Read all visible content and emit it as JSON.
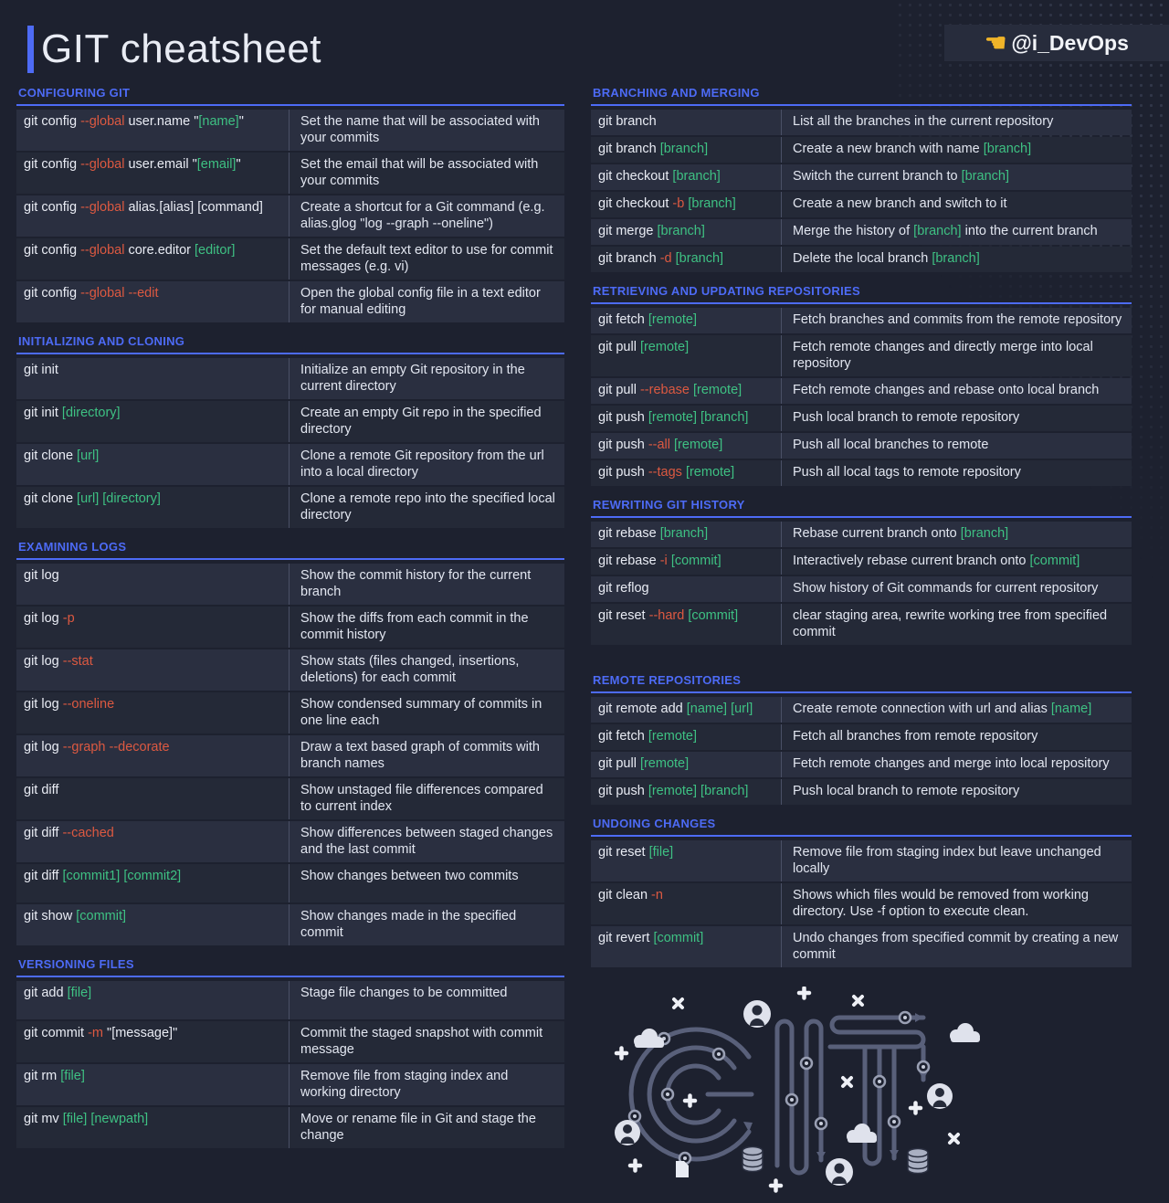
{
  "header": {
    "title": "GIT cheatsheet",
    "badge_pointer": "☚",
    "badge_handle": "@i_DevOps"
  },
  "colors": {
    "background": "#1d212f",
    "accent_blue": "#4d6bf6",
    "row_odd": "#2a2f40",
    "row_even": "#242937",
    "option_red": "#dc5941",
    "placeholder_green": "#3ec183",
    "text_light": "#e9ecf4",
    "badge_gold": "#f0b429"
  },
  "illustration": {
    "word": "GIT"
  },
  "columns": {
    "left": [
      {
        "title": "CONFIGURING GIT",
        "rows": [
          {
            "cmd": [
              {
                "t": "git config "
              },
              {
                "t": "--global",
                "c": "r"
              },
              {
                "t": " user.name \""
              },
              {
                "t": "[name]",
                "c": "g"
              },
              {
                "t": "\""
              }
            ],
            "desc": [
              {
                "t": "Set the name that will be associated with your commits"
              }
            ]
          },
          {
            "cmd": [
              {
                "t": "git config "
              },
              {
                "t": "--global",
                "c": "r"
              },
              {
                "t": " user.email \""
              },
              {
                "t": "[email]",
                "c": "g"
              },
              {
                "t": "\""
              }
            ],
            "desc": [
              {
                "t": "Set the email that will be associated with your commits"
              }
            ]
          },
          {
            "cmd": [
              {
                "t": "git config "
              },
              {
                "t": "--global",
                "c": "r"
              },
              {
                "t": " alias.[alias] [command]"
              }
            ],
            "desc": [
              {
                "t": "Create a shortcut for a Git command (e.g. alias.glog \"log --graph --oneline\")"
              }
            ]
          },
          {
            "cmd": [
              {
                "t": "git config "
              },
              {
                "t": "--global",
                "c": "r"
              },
              {
                "t": " core.editor "
              },
              {
                "t": "[editor]",
                "c": "g"
              }
            ],
            "desc": [
              {
                "t": "Set the default text editor to use for commit messages (e.g. vi)"
              }
            ]
          },
          {
            "cmd": [
              {
                "t": "git config "
              },
              {
                "t": "--global --edit",
                "c": "r"
              }
            ],
            "desc": [
              {
                "t": "Open the global config file in a text editor for manual editing"
              }
            ]
          }
        ]
      },
      {
        "title": "INITIALIZING AND CLONING",
        "rows": [
          {
            "cmd": [
              {
                "t": "git init"
              }
            ],
            "desc": [
              {
                "t": "Initialize an empty Git repository in the current directory"
              }
            ]
          },
          {
            "cmd": [
              {
                "t": "git init "
              },
              {
                "t": "[directory]",
                "c": "g"
              }
            ],
            "desc": [
              {
                "t": "Create an empty Git repo in the specified directory"
              }
            ]
          },
          {
            "cmd": [
              {
                "t": "git clone "
              },
              {
                "t": "[url]",
                "c": "g"
              }
            ],
            "desc": [
              {
                "t": "Clone a remote Git repository from the url into a local directory"
              }
            ]
          },
          {
            "cmd": [
              {
                "t": "git clone "
              },
              {
                "t": "[url] [directory]",
                "c": "g"
              }
            ],
            "desc": [
              {
                "t": "Clone a remote repo into the specified local directory"
              }
            ]
          }
        ]
      },
      {
        "title": "EXAMINING LOGS",
        "rows": [
          {
            "cmd": [
              {
                "t": "git log"
              }
            ],
            "desc": [
              {
                "t": "Show the commit history for the current branch"
              }
            ]
          },
          {
            "cmd": [
              {
                "t": "git log "
              },
              {
                "t": "-p",
                "c": "r"
              }
            ],
            "desc": [
              {
                "t": "Show the diffs from each commit in the commit history"
              }
            ]
          },
          {
            "cmd": [
              {
                "t": "git log "
              },
              {
                "t": "--stat",
                "c": "r"
              }
            ],
            "desc": [
              {
                "t": "Show stats (files changed, insertions, deletions) for each commit"
              }
            ]
          },
          {
            "cmd": [
              {
                "t": "git log "
              },
              {
                "t": "--oneline",
                "c": "r"
              }
            ],
            "desc": [
              {
                "t": "Show condensed summary of commits in one line each"
              }
            ]
          },
          {
            "cmd": [
              {
                "t": "git log "
              },
              {
                "t": "--graph --decorate",
                "c": "r"
              }
            ],
            "desc": [
              {
                "t": "Draw a text based graph of commits with branch names"
              }
            ]
          },
          {
            "cmd": [
              {
                "t": "git diff"
              }
            ],
            "desc": [
              {
                "t": "Show unstaged file differences compared to current index"
              }
            ]
          },
          {
            "cmd": [
              {
                "t": "git diff "
              },
              {
                "t": "--cached",
                "c": "r"
              }
            ],
            "desc": [
              {
                "t": "Show differences between staged changes and the last commit"
              }
            ]
          },
          {
            "cmd": [
              {
                "t": "git diff "
              },
              {
                "t": "[commit1] [commit2]",
                "c": "g"
              }
            ],
            "desc": [
              {
                "t": "Show changes between two commits"
              }
            ]
          },
          {
            "cmd": [
              {
                "t": "git show "
              },
              {
                "t": "[commit]",
                "c": "g"
              }
            ],
            "desc": [
              {
                "t": "Show changes made in the specified commit"
              }
            ]
          }
        ]
      },
      {
        "title": "VERSIONING FILES",
        "rows": [
          {
            "cmd": [
              {
                "t": "git add "
              },
              {
                "t": "[file]",
                "c": "g"
              }
            ],
            "desc": [
              {
                "t": "Stage file changes to be committed"
              }
            ]
          },
          {
            "cmd": [
              {
                "t": "git commit "
              },
              {
                "t": "-m",
                "c": "r"
              },
              {
                "t": " \"[message]\""
              }
            ],
            "desc": [
              {
                "t": "Commit the staged snapshot with commit message"
              }
            ]
          },
          {
            "cmd": [
              {
                "t": "git rm "
              },
              {
                "t": "[file]",
                "c": "g"
              }
            ],
            "desc": [
              {
                "t": "Remove file from staging index and working directory"
              }
            ]
          },
          {
            "cmd": [
              {
                "t": "git mv "
              },
              {
                "t": "[file] [newpath]",
                "c": "g"
              }
            ],
            "desc": [
              {
                "t": "Move or rename file in Git and stage the change"
              }
            ]
          }
        ]
      }
    ],
    "right": [
      {
        "title": "BRANCHING AND MERGING",
        "rows": [
          {
            "cmd": [
              {
                "t": "git branch"
              }
            ],
            "desc": [
              {
                "t": "List all the branches in the current repository"
              }
            ]
          },
          {
            "cmd": [
              {
                "t": "git branch "
              },
              {
                "t": "[branch]",
                "c": "g"
              }
            ],
            "desc": [
              {
                "t": "Create a new branch with name "
              },
              {
                "t": "[branch]",
                "c": "g"
              }
            ]
          },
          {
            "cmd": [
              {
                "t": "git checkout "
              },
              {
                "t": "[branch]",
                "c": "g"
              }
            ],
            "desc": [
              {
                "t": "Switch the current branch to "
              },
              {
                "t": "[branch]",
                "c": "g"
              }
            ]
          },
          {
            "cmd": [
              {
                "t": "git checkout "
              },
              {
                "t": "-b",
                "c": "r"
              },
              {
                "t": " "
              },
              {
                "t": "[branch]",
                "c": "g"
              }
            ],
            "desc": [
              {
                "t": "Create a new branch and switch to it"
              }
            ]
          },
          {
            "cmd": [
              {
                "t": "git merge "
              },
              {
                "t": "[branch]",
                "c": "g"
              }
            ],
            "desc": [
              {
                "t": "Merge the history of "
              },
              {
                "t": "[branch]",
                "c": "g"
              },
              {
                "t": " into the current branch"
              }
            ]
          },
          {
            "cmd": [
              {
                "t": "git branch "
              },
              {
                "t": "-d",
                "c": "r"
              },
              {
                "t": " "
              },
              {
                "t": "[branch]",
                "c": "g"
              }
            ],
            "desc": [
              {
                "t": "Delete the local branch "
              },
              {
                "t": "[branch]",
                "c": "g"
              }
            ]
          }
        ]
      },
      {
        "title": "RETRIEVING AND UPDATING REPOSITORIES",
        "rows": [
          {
            "cmd": [
              {
                "t": "git fetch "
              },
              {
                "t": "[remote]",
                "c": "g"
              }
            ],
            "desc": [
              {
                "t": "Fetch branches and commits from the remote repository"
              }
            ]
          },
          {
            "cmd": [
              {
                "t": "git pull "
              },
              {
                "t": "[remote]",
                "c": "g"
              }
            ],
            "desc": [
              {
                "t": "Fetch remote changes and directly merge into local repository"
              }
            ]
          },
          {
            "cmd": [
              {
                "t": "git pull "
              },
              {
                "t": "--rebase",
                "c": "r"
              },
              {
                "t": " "
              },
              {
                "t": "[remote]",
                "c": "g"
              }
            ],
            "desc": [
              {
                "t": "Fetch remote changes and rebase onto local branch"
              }
            ]
          },
          {
            "cmd": [
              {
                "t": "git push "
              },
              {
                "t": "[remote] [branch]",
                "c": "g"
              }
            ],
            "desc": [
              {
                "t": "Push local branch to remote repository"
              }
            ]
          },
          {
            "cmd": [
              {
                "t": "git push "
              },
              {
                "t": "--all",
                "c": "r"
              },
              {
                "t": " "
              },
              {
                "t": "[remote]",
                "c": "g"
              }
            ],
            "desc": [
              {
                "t": "Push all local branches to remote"
              }
            ]
          },
          {
            "cmd": [
              {
                "t": "git push "
              },
              {
                "t": "--tags",
                "c": "r"
              },
              {
                "t": " "
              },
              {
                "t": "[remote]",
                "c": "g"
              }
            ],
            "desc": [
              {
                "t": "Push all local tags to remote repository"
              }
            ]
          }
        ]
      },
      {
        "title": "REWRITING GIT HISTORY",
        "rows": [
          {
            "cmd": [
              {
                "t": "git rebase "
              },
              {
                "t": "[branch]",
                "c": "g"
              }
            ],
            "desc": [
              {
                "t": "Rebase current branch onto "
              },
              {
                "t": "[branch]",
                "c": "g"
              }
            ]
          },
          {
            "cmd": [
              {
                "t": "git rebase "
              },
              {
                "t": "-i",
                "c": "r"
              },
              {
                "t": " "
              },
              {
                "t": "[commit]",
                "c": "g"
              }
            ],
            "desc": [
              {
                "t": "Interactively rebase current branch onto "
              },
              {
                "t": "[commit]",
                "c": "g"
              }
            ]
          },
          {
            "cmd": [
              {
                "t": "git reflog"
              }
            ],
            "desc": [
              {
                "t": "Show history of Git commands for current repository"
              }
            ]
          },
          {
            "cmd": [
              {
                "t": "git reset "
              },
              {
                "t": "--hard",
                "c": "r"
              },
              {
                "t": " "
              },
              {
                "t": "[commit]",
                "c": "g"
              }
            ],
            "desc": [
              {
                "t": "clear staging area, rewrite working tree from specified commit"
              }
            ]
          }
        ]
      },
      {
        "title": "REMOTE REPOSITORIES",
        "rows": [
          {
            "cmd": [
              {
                "t": "git remote add "
              },
              {
                "t": "[name] [url]",
                "c": "g"
              }
            ],
            "desc": [
              {
                "t": "Create remote connection with url and alias "
              },
              {
                "t": "[name]",
                "c": "g"
              }
            ]
          },
          {
            "cmd": [
              {
                "t": "git fetch "
              },
              {
                "t": "[remote]",
                "c": "g"
              }
            ],
            "desc": [
              {
                "t": "Fetch all branches from remote repository"
              }
            ]
          },
          {
            "cmd": [
              {
                "t": "git pull "
              },
              {
                "t": "[remote]",
                "c": "g"
              }
            ],
            "desc": [
              {
                "t": "Fetch remote changes and merge into local repository"
              }
            ]
          },
          {
            "cmd": [
              {
                "t": "git push "
              },
              {
                "t": "[remote] [branch]",
                "c": "g"
              }
            ],
            "desc": [
              {
                "t": "Push local branch to remote repository"
              }
            ]
          }
        ]
      },
      {
        "title": "UNDOING CHANGES",
        "rows": [
          {
            "cmd": [
              {
                "t": "git reset "
              },
              {
                "t": "[file]",
                "c": "g"
              }
            ],
            "desc": [
              {
                "t": "Remove file from staging index but leave unchanged locally"
              }
            ]
          },
          {
            "cmd": [
              {
                "t": "git clean "
              },
              {
                "t": "-n",
                "c": "r"
              }
            ],
            "desc": [
              {
                "t": "Shows which files would be removed from working directory. Use -f option to execute clean."
              }
            ]
          },
          {
            "cmd": [
              {
                "t": "git revert "
              },
              {
                "t": "[commit]",
                "c": "g"
              }
            ],
            "desc": [
              {
                "t": "Undo changes from specified commit by creating a new commit"
              }
            ]
          }
        ]
      }
    ]
  }
}
